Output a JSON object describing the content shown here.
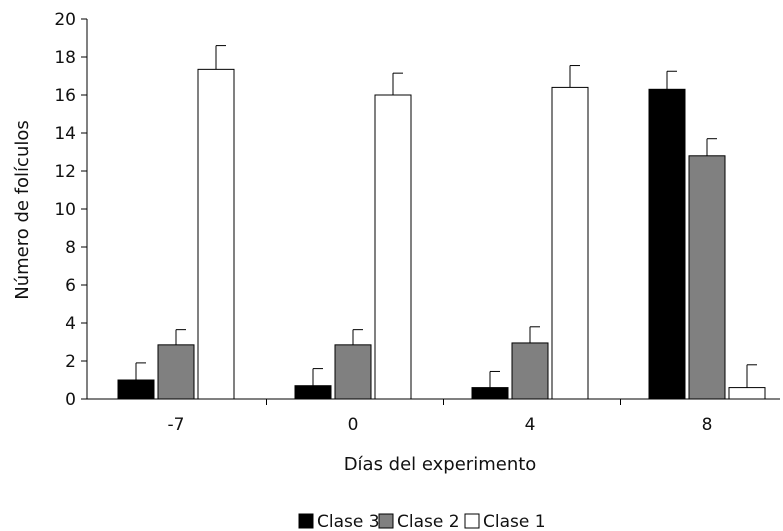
{
  "chart_data": {
    "type": "bar",
    "categories": [
      "-7",
      "0",
      "4",
      "8"
    ],
    "series": [
      {
        "name": "Clase 3",
        "color": "#000000",
        "values": [
          1.0,
          0.7,
          0.6,
          16.3
        ],
        "errors": [
          0.9,
          0.9,
          0.85,
          0.95
        ]
      },
      {
        "name": "Clase 2",
        "color": "#808080",
        "values": [
          2.85,
          2.85,
          2.95,
          12.8
        ],
        "errors": [
          0.8,
          0.8,
          0.85,
          0.9
        ]
      },
      {
        "name": "Clase 1",
        "color": "#ffffff",
        "values": [
          17.35,
          16.0,
          16.4,
          0.6
        ],
        "errors": [
          1.25,
          1.15,
          1.15,
          1.2
        ]
      }
    ],
    "xlabel": "Días del experimento",
    "ylabel": "Número de folículos",
    "ylim": [
      0,
      20
    ],
    "yticks": [
      "0",
      "2",
      "4",
      "6",
      "8",
      "10",
      "12",
      "14",
      "16",
      "18",
      "20"
    ],
    "grid": false,
    "legend_position": "bottom-center"
  }
}
